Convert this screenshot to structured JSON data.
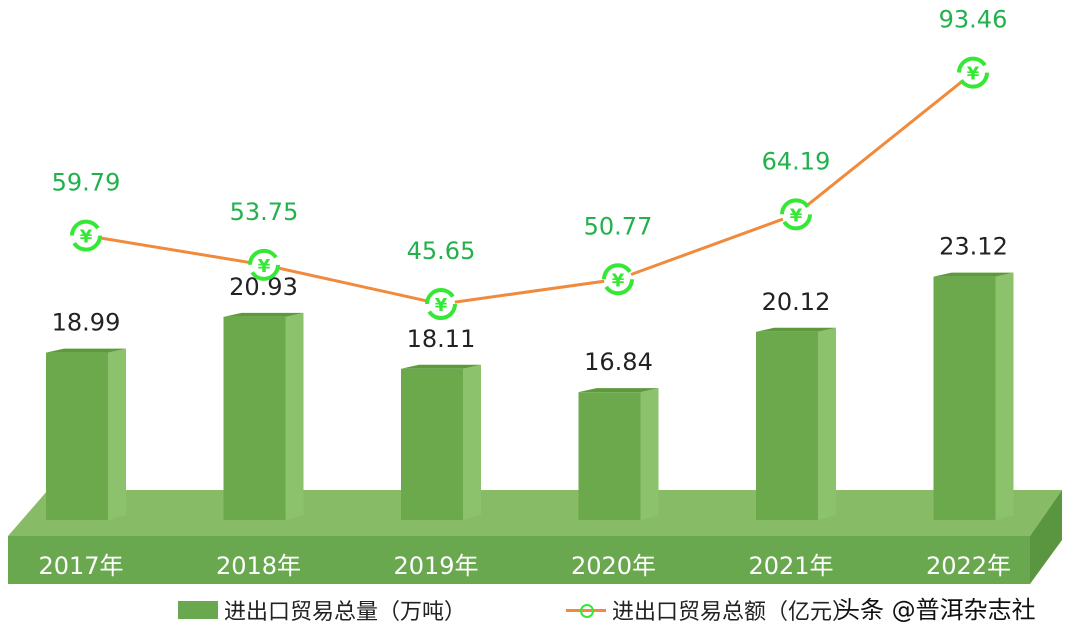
{
  "chart_data": {
    "type": "bar+line",
    "categories": [
      "2017年",
      "2018年",
      "2019年",
      "2020年",
      "2021年",
      "2022年"
    ],
    "series": [
      {
        "name": "进出口贸易总量（万吨）",
        "type": "bar",
        "values": [
          18.99,
          20.93,
          18.11,
          16.84,
          20.12,
          23.12
        ],
        "labels": [
          "18.99",
          "20.93",
          "18.11",
          "16.84",
          "20.12",
          "23.12"
        ],
        "color": "#6aa84f"
      },
      {
        "name": "进出口贸易总额（亿元）",
        "type": "line",
        "values": [
          59.79,
          53.75,
          45.65,
          50.77,
          64.19,
          93.46
        ],
        "labels": [
          "59.79",
          "53.75",
          "45.65",
          "50.77",
          "64.19",
          "93.46"
        ],
        "color": "#f08a3c",
        "marker_color": "#35e835",
        "label_color": "#22b14c"
      }
    ],
    "legend": "bottom",
    "grid": false
  },
  "watermark": "头条 @普洱杂志社"
}
